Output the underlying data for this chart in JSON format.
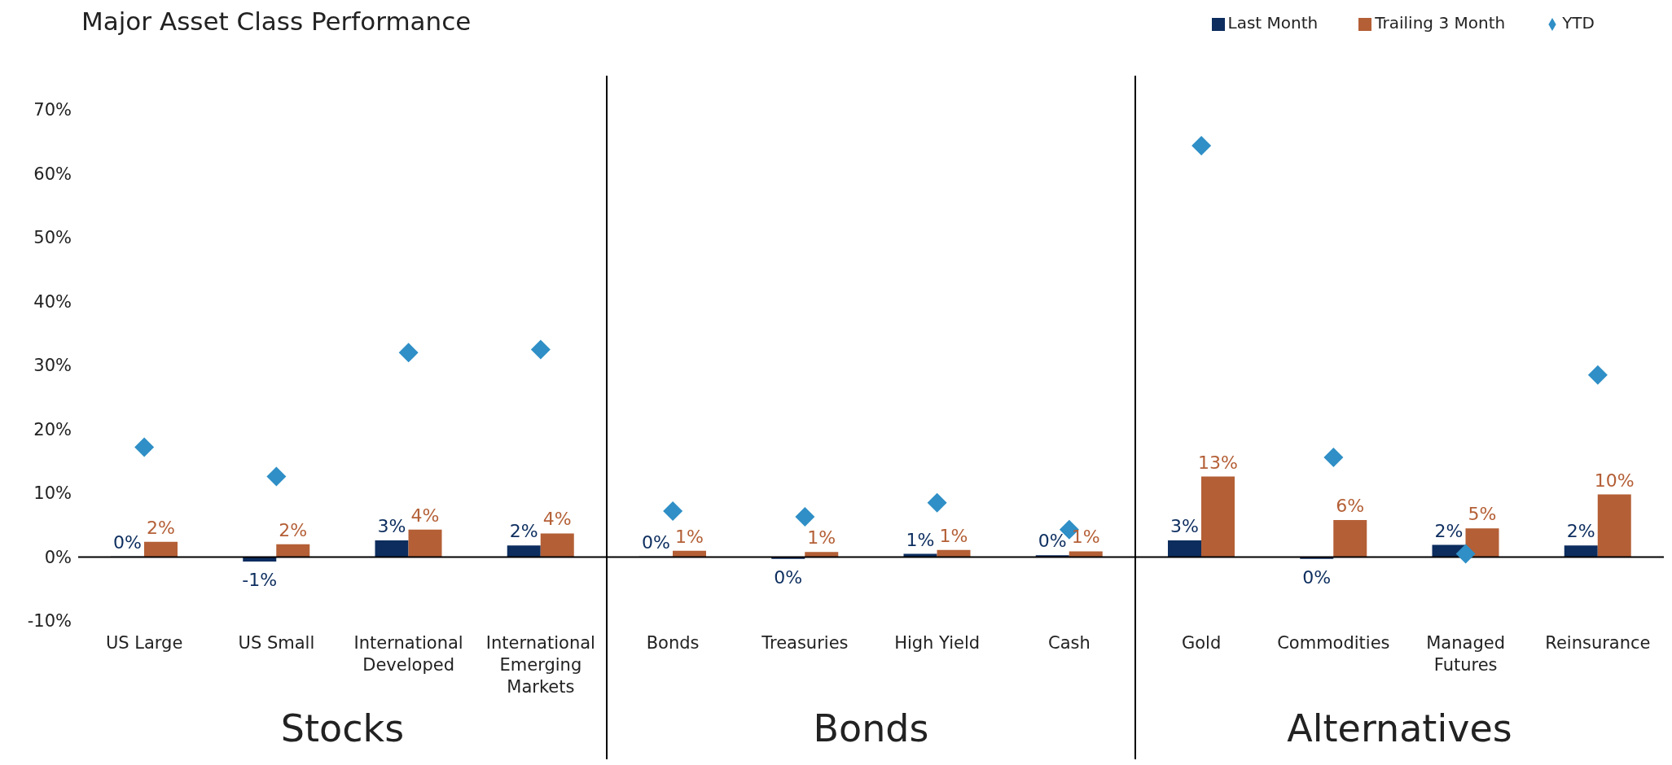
{
  "chart_data": {
    "type": "bar",
    "title": "Major Asset Class Performance",
    "categories": [
      "US Large",
      "US Small",
      "International Developed",
      "International Emerging Markets",
      "Bonds",
      "Treasuries",
      "High Yield",
      "Cash",
      "Gold",
      "Commodities",
      "Managed Futures",
      "Reinsurance"
    ],
    "series": [
      {
        "name": "Last Month",
        "color": "#0c2d5e",
        "values": [
          0.1,
          -0.7,
          2.6,
          1.8,
          0.1,
          -0.3,
          0.5,
          0.3,
          2.6,
          -0.3,
          1.9,
          1.8
        ],
        "value_labels": [
          "0%",
          "-1%",
          "3%",
          "2%",
          "0%",
          "0%",
          "1%",
          "0%",
          "3%",
          "0%",
          "2%",
          "2%"
        ]
      },
      {
        "name": "Trailing 3 Month",
        "color": "#b45f36",
        "values": [
          2.4,
          2.0,
          4.3,
          3.7,
          1.0,
          0.8,
          1.1,
          0.9,
          12.6,
          5.8,
          4.5,
          9.8
        ],
        "value_labels": [
          "2%",
          "2%",
          "4%",
          "4%",
          "1%",
          "1%",
          "1%",
          "1%",
          "13%",
          "6%",
          "5%",
          "10%"
        ]
      },
      {
        "name": "YTD",
        "type": "scatter",
        "color": "#2f8fc6",
        "values": [
          17.2,
          12.6,
          32.0,
          32.5,
          7.2,
          6.3,
          8.5,
          4.3,
          64.4,
          15.6,
          0.5,
          28.5
        ]
      }
    ],
    "ylim": [
      -10,
      70
    ],
    "yticks": [
      {
        "value": -10,
        "label": "-10%"
      },
      {
        "value": 0,
        "label": "0%"
      },
      {
        "value": 10,
        "label": "10%"
      },
      {
        "value": 20,
        "label": "20%"
      },
      {
        "value": 30,
        "label": "30%"
      },
      {
        "value": 40,
        "label": "40%"
      },
      {
        "value": 50,
        "label": "50%"
      },
      {
        "value": 60,
        "label": "60%"
      },
      {
        "value": 70,
        "label": "70%"
      }
    ],
    "annotations": [
      "Stocks",
      "Bonds",
      "Alternatives"
    ],
    "legend": "top right",
    "marker": "diamond"
  }
}
